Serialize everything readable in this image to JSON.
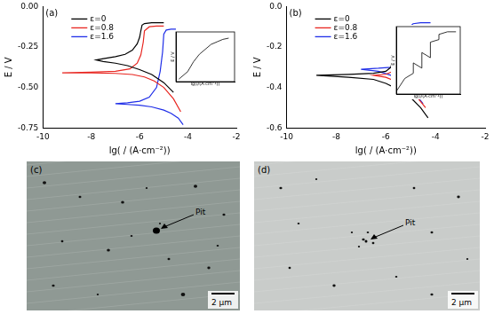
{
  "chart_data": [
    {
      "type": "line",
      "annotation": "(a)",
      "x_label": "lg( / (A·cm⁻²))",
      "y_label": "E / V",
      "xlim": [
        -10,
        -2
      ],
      "xticks": [
        -10,
        -8,
        -6,
        -4,
        -2
      ],
      "ylim": [
        -0.75,
        0
      ],
      "yticks": [
        {
          "value": -0.75,
          "label": "-0.75"
        },
        {
          "value": -0.5,
          "label": "-0.50"
        },
        {
          "value": -0.25,
          "label": "-0.25"
        },
        {
          "value": 0,
          "label": "0.00"
        }
      ],
      "grid": false,
      "legend": "upper left",
      "series": [
        {
          "name": "ε=0",
          "color": "#000000",
          "x": [
            -4.6,
            -5.0,
            -5.5,
            -6.0,
            -6.5,
            -7.0,
            -7.5,
            -7.8,
            -7.5,
            -7.0,
            -6.6,
            -6.3,
            -6.1,
            -6.0,
            -5.95,
            -5.9,
            -5.8,
            -5.5,
            -5.0
          ],
          "values": [
            -0.53,
            -0.47,
            -0.42,
            -0.39,
            -0.365,
            -0.35,
            -0.34,
            -0.33,
            -0.322,
            -0.31,
            -0.295,
            -0.27,
            -0.23,
            -0.19,
            -0.15,
            -0.115,
            -0.105,
            -0.1,
            -0.1
          ]
        },
        {
          "name": "ε=0.8",
          "color": "#e8251f",
          "x": [
            -4.3,
            -4.6,
            -5.0,
            -5.4,
            -5.8,
            -6.3,
            -7.0,
            -8.0,
            -9.2,
            -8.0,
            -7.0,
            -6.4,
            -6.1,
            -5.95,
            -5.85,
            -5.8,
            -5.6,
            -5.3,
            -5.0
          ],
          "values": [
            -0.65,
            -0.57,
            -0.5,
            -0.46,
            -0.435,
            -0.42,
            -0.413,
            -0.41,
            -0.41,
            -0.405,
            -0.4,
            -0.385,
            -0.35,
            -0.3,
            -0.22,
            -0.15,
            -0.125,
            -0.12,
            -0.12
          ]
        },
        {
          "name": "ε=1.6",
          "color": "#1f2ee8",
          "x": [
            -4.2,
            -4.4,
            -4.7,
            -5.0,
            -5.5,
            -6.0,
            -6.5,
            -7.0,
            -6.5,
            -6.0,
            -5.6,
            -5.3,
            -5.15,
            -5.05,
            -5.0,
            -4.9,
            -4.7,
            -4.5
          ],
          "values": [
            -0.73,
            -0.69,
            -0.66,
            -0.64,
            -0.62,
            -0.61,
            -0.605,
            -0.6,
            -0.595,
            -0.585,
            -0.56,
            -0.5,
            -0.4,
            -0.28,
            -0.17,
            -0.145,
            -0.14,
            -0.14
          ]
        }
      ]
    },
    {
      "type": "line",
      "annotation": "(b)",
      "x_label": "lg( / (A·cm⁻²))",
      "y_label": "E / V",
      "xlim": [
        -10,
        -2
      ],
      "xticks": [
        -10,
        -8,
        -6,
        -4,
        -2
      ],
      "ylim": [
        -0.6,
        0
      ],
      "yticks": [
        -0.6,
        -0.4,
        -0.2,
        {
          "value": 0,
          "label": "0.0"
        }
      ],
      "grid": false,
      "legend": "upper left",
      "series": [
        {
          "name": "ε=0",
          "color": "#000000",
          "x": [
            -4.3,
            -4.6,
            -5.0,
            -5.5,
            -6.0,
            -6.5,
            -7.5,
            -8.8,
            -7.5,
            -6.5,
            -6.0,
            -5.8,
            -5.7,
            -5.65,
            -5.6,
            -5.4,
            -5.0,
            -4.5
          ],
          "values": [
            -0.55,
            -0.5,
            -0.45,
            -0.41,
            -0.38,
            -0.36,
            -0.35,
            -0.34,
            -0.335,
            -0.33,
            -0.32,
            -0.3,
            -0.25,
            -0.18,
            -0.12,
            -0.105,
            -0.1,
            -0.1
          ]
        },
        {
          "name": "ε=0.8",
          "color": "#e8251f",
          "x": [
            -4.4,
            -4.8,
            -5.2,
            -5.6,
            -6.0,
            -6.5,
            -6.0,
            -5.7,
            -5.55,
            -5.5,
            -5.45,
            -5.3,
            -5.0,
            -4.6
          ],
          "values": [
            -0.5,
            -0.44,
            -0.4,
            -0.37,
            -0.35,
            -0.34,
            -0.335,
            -0.32,
            -0.28,
            -0.2,
            -0.14,
            -0.125,
            -0.12,
            -0.12
          ]
        },
        {
          "name": "ε=1.6",
          "color": "#1f2ee8",
          "x": [
            -4.5,
            -4.9,
            -5.3,
            -5.8,
            -6.3,
            -7.0,
            -6.3,
            -5.8,
            -5.4,
            -5.2,
            -5.1,
            -5.05,
            -4.9,
            -4.6,
            -4.2
          ],
          "values": [
            -0.48,
            -0.42,
            -0.37,
            -0.34,
            -0.32,
            -0.31,
            -0.305,
            -0.3,
            -0.28,
            -0.22,
            -0.15,
            -0.1,
            -0.085,
            -0.08,
            -0.08
          ]
        }
      ]
    },
    {
      "type": "line",
      "x_label": "lg(i/(A·cm⁻²))",
      "y_label": "E / V",
      "xlim": [
        -6,
        -4
      ],
      "ylim": [
        -0.3,
        -0.1
      ],
      "tick_labels": false,
      "grid": false,
      "series": [
        {
          "color": "#000000",
          "x": [
            -5.9,
            -5.6,
            -5.4,
            -5.2,
            -5.0,
            -4.8,
            -4.6,
            -4.4,
            -4.2
          ],
          "values": [
            -0.29,
            -0.26,
            -0.22,
            -0.19,
            -0.17,
            -0.15,
            -0.14,
            -0.13,
            -0.125
          ]
        }
      ]
    },
    {
      "type": "line",
      "x_label": "lg(i/(A·cm⁻²))",
      "y_label": "E / V",
      "xlim": [
        -6,
        -4.5
      ],
      "ylim": [
        -0.36,
        -0.1
      ],
      "tick_labels": false,
      "grid": false,
      "series": [
        {
          "color": "#000000",
          "x": [
            -6.0,
            -5.8,
            -5.6,
            -5.6,
            -5.4,
            -5.4,
            -5.2,
            -5.2,
            -5.0,
            -5.0,
            -4.8,
            -4.6
          ],
          "values": [
            -0.35,
            -0.3,
            -0.28,
            -0.24,
            -0.26,
            -0.2,
            -0.22,
            -0.16,
            -0.15,
            -0.13,
            -0.12,
            -0.12
          ]
        }
      ]
    }
  ],
  "micrographs": [
    {
      "panel": "(c)",
      "annotation": "Pit",
      "scale_bar": "2 μm"
    },
    {
      "panel": "(d)",
      "annotation": "Pit",
      "scale_bar": "2 μm"
    }
  ]
}
